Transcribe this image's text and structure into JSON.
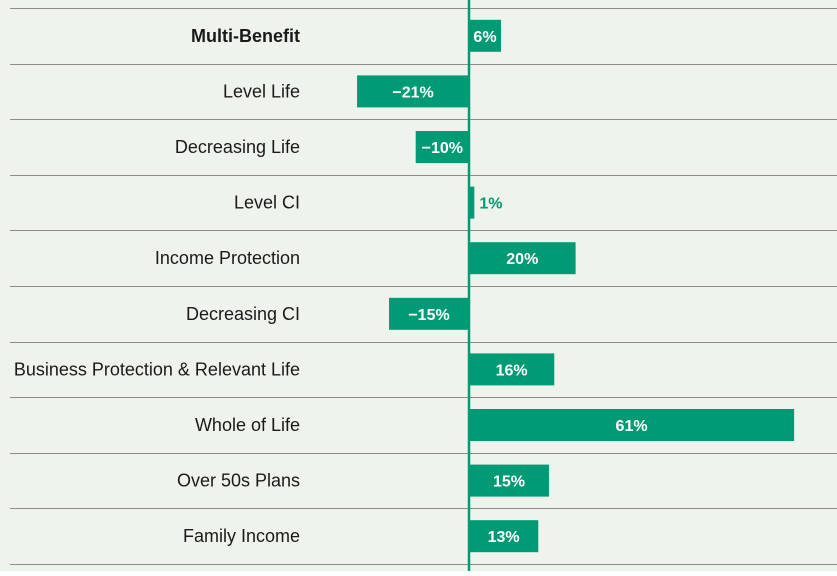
{
  "chart_data": {
    "type": "bar",
    "orientation": "horizontal",
    "categories": [
      "Multi-Benefit",
      "Level Life",
      "Decreasing Life",
      "Level CI",
      "Income Protection",
      "Decreasing CI",
      "Business Protection & Relevant Life",
      "Whole of Life",
      "Over 50s Plans",
      "Family Income"
    ],
    "values": [
      6,
      -21,
      -10,
      1,
      20,
      -15,
      16,
      61,
      15,
      13
    ],
    "value_labels": [
      "6%",
      "−21%",
      "−10%",
      "1%",
      "20%",
      "−15%",
      "16%",
      "61%",
      "15%",
      "13%"
    ],
    "bold_categories": [
      "Multi-Benefit"
    ],
    "unit": "%",
    "title": "",
    "xlabel": "",
    "ylabel": "",
    "xlim": [
      -21,
      61
    ],
    "grid": "horizontal row separators",
    "legend": "none",
    "colors": {
      "bar": "#009a75",
      "background": "#eef4ec",
      "separator": "#8c8c8c",
      "axis": "#009a75",
      "label_inside": "#ffffff",
      "label_outside": "#009a75",
      "text": "#1a1a1a"
    }
  }
}
